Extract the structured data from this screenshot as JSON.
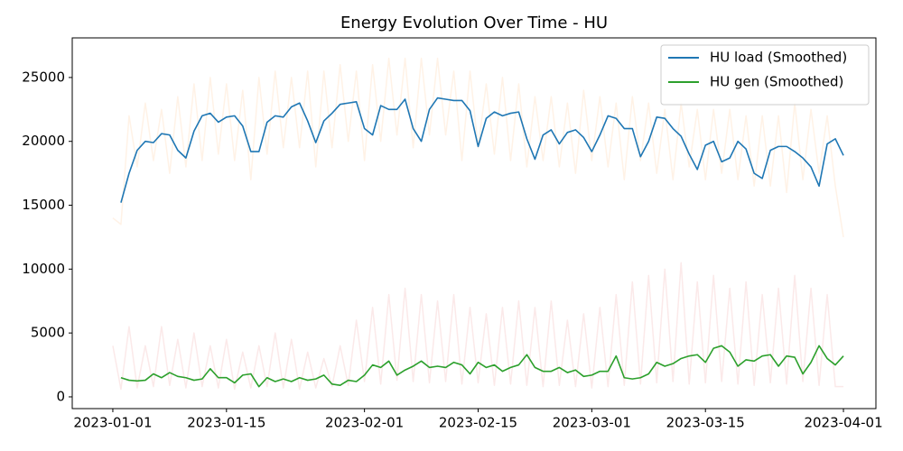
{
  "chart_data": {
    "type": "line",
    "title": "Energy Evolution Over Time - HU",
    "x": [
      "2023-01-01",
      "2023-01-02",
      "2023-01-03",
      "2023-01-04",
      "2023-01-05",
      "2023-01-06",
      "2023-01-07",
      "2023-01-08",
      "2023-01-09",
      "2023-01-10",
      "2023-01-11",
      "2023-01-12",
      "2023-01-13",
      "2023-01-14",
      "2023-01-15",
      "2023-01-16",
      "2023-01-17",
      "2023-01-18",
      "2023-01-19",
      "2023-01-20",
      "2023-01-21",
      "2023-01-22",
      "2023-01-23",
      "2023-01-24",
      "2023-01-25",
      "2023-01-26",
      "2023-01-27",
      "2023-01-28",
      "2023-01-29",
      "2023-01-30",
      "2023-01-31",
      "2023-02-01",
      "2023-02-02",
      "2023-02-03",
      "2023-02-04",
      "2023-02-05",
      "2023-02-06",
      "2023-02-07",
      "2023-02-08",
      "2023-02-09",
      "2023-02-10",
      "2023-02-11",
      "2023-02-12",
      "2023-02-13",
      "2023-02-14",
      "2023-02-15",
      "2023-02-16",
      "2023-02-17",
      "2023-02-18",
      "2023-02-19",
      "2023-02-20",
      "2023-02-21",
      "2023-02-22",
      "2023-02-23",
      "2023-02-24",
      "2023-02-25",
      "2023-02-26",
      "2023-02-27",
      "2023-02-28",
      "2023-03-01",
      "2023-03-02",
      "2023-03-03",
      "2023-03-04",
      "2023-03-05",
      "2023-03-06",
      "2023-03-07",
      "2023-03-08",
      "2023-03-09",
      "2023-03-10",
      "2023-03-11",
      "2023-03-12",
      "2023-03-13",
      "2023-03-14",
      "2023-03-15",
      "2023-03-16",
      "2023-03-17",
      "2023-03-18",
      "2023-03-19",
      "2023-03-20",
      "2023-03-21",
      "2023-03-22",
      "2023-03-23",
      "2023-03-24",
      "2023-03-25",
      "2023-03-26",
      "2023-03-27",
      "2023-03-28",
      "2023-03-29",
      "2023-03-30",
      "2023-03-31",
      "2023-04-01"
    ],
    "series": [
      {
        "color": "#ff7f0e",
        "opacity": 0.1,
        "values": [
          14000,
          13500,
          22000,
          18000,
          23000,
          18500,
          22500,
          17500,
          23500,
          18000,
          24500,
          18500,
          25000,
          19000,
          24500,
          18500,
          24000,
          17000,
          25000,
          19000,
          25500,
          19500,
          25000,
          19500,
          25500,
          18000,
          25500,
          19500,
          26000,
          20000,
          25500,
          18500,
          26000,
          20000,
          26500,
          20500,
          26500,
          19500,
          26500,
          20500,
          26500,
          20500,
          25500,
          18500,
          25500,
          19500,
          24500,
          19000,
          25000,
          18500,
          24500,
          18000,
          23500,
          18500,
          23500,
          18000,
          23000,
          17500,
          24000,
          18500,
          23500,
          18000,
          23000,
          17000,
          23500,
          18500,
          23000,
          17500,
          22500,
          17000,
          23000,
          18000,
          22500,
          17000,
          22500,
          17500,
          22500,
          17000,
          22000,
          16500,
          22000,
          16500,
          22000,
          16000,
          23000,
          17000,
          22500,
          17500,
          22000,
          16500,
          12500
        ]
      },
      {
        "color": "#d62728",
        "opacity": 0.1,
        "values": [
          4000,
          600,
          5500,
          700,
          4000,
          800,
          5500,
          900,
          4500,
          700,
          5000,
          800,
          4000,
          700,
          4500,
          600,
          3500,
          700,
          4000,
          800,
          5000,
          700,
          4500,
          600,
          3500,
          700,
          3000,
          800,
          4000,
          900,
          6000,
          1200,
          7000,
          1000,
          8000,
          1300,
          8500,
          1200,
          8000,
          1100,
          7500,
          1200,
          8000,
          1000,
          7000,
          1100,
          6500,
          900,
          7000,
          1000,
          7500,
          900,
          7000,
          800,
          7500,
          900,
          6000,
          800,
          6500,
          700,
          7000,
          800,
          8000,
          900,
          9000,
          1000,
          9500,
          1100,
          10000,
          1200,
          10500,
          1000,
          9000,
          1100,
          9500,
          1200,
          8500,
          1000,
          9000,
          900,
          8000,
          1100,
          8500,
          1000,
          9500,
          1200,
          8500,
          900,
          8000,
          800,
          800
        ]
      },
      {
        "name": "HU load (Smoothed)",
        "color": "#1f77b4",
        "values": [
          null,
          15200,
          17500,
          19300,
          20000,
          19900,
          20600,
          20500,
          19300,
          18700,
          20800,
          22000,
          22200,
          21500,
          21900,
          22000,
          21200,
          19200,
          19200,
          21500,
          22000,
          21900,
          22700,
          23000,
          21600,
          19900,
          21600,
          22200,
          22900,
          23000,
          23100,
          21000,
          20500,
          22800,
          22500,
          22500,
          23300,
          21000,
          20000,
          22500,
          23400,
          23300,
          23200,
          23200,
          22400,
          19600,
          21800,
          22300,
          22000,
          22200,
          22300,
          20200,
          18600,
          20500,
          20900,
          19800,
          20700,
          20900,
          20300,
          19200,
          20500,
          22000,
          21800,
          21000,
          21000,
          18800,
          20000,
          21900,
          21800,
          21000,
          20400,
          19000,
          17800,
          19700,
          20000,
          18400,
          18700,
          20000,
          19400,
          17500,
          17100,
          19300,
          19600,
          19600,
          19200,
          18700,
          18000,
          16500,
          19800,
          20200,
          18900
        ]
      },
      {
        "name": "HU gen (Smoothed)",
        "color": "#2ca02c",
        "values": [
          null,
          1500,
          1300,
          1250,
          1300,
          1800,
          1500,
          1900,
          1600,
          1500,
          1300,
          1400,
          2200,
          1500,
          1500,
          1100,
          1700,
          1800,
          800,
          1500,
          1200,
          1400,
          1200,
          1500,
          1300,
          1400,
          1700,
          1000,
          900,
          1300,
          1200,
          1700,
          2500,
          2300,
          2800,
          1700,
          2100,
          2400,
          2800,
          2300,
          2400,
          2300,
          2700,
          2500,
          1800,
          2700,
          2300,
          2500,
          2000,
          2300,
          2500,
          3300,
          2300,
          2000,
          2000,
          2300,
          1900,
          2100,
          1600,
          1700,
          2000,
          2000,
          3200,
          1500,
          1400,
          1500,
          1800,
          2700,
          2400,
          2600,
          3000,
          3200,
          3300,
          2700,
          3800,
          4000,
          3500,
          2400,
          2900,
          2800,
          3200,
          3300,
          2400,
          3200,
          3100,
          1800,
          2700,
          4000,
          3000,
          2500,
          3200
        ]
      }
    ],
    "xlim": [
      "2022-12-27",
      "2023-04-05"
    ],
    "xticks": [
      "2023-01-01",
      "2023-01-15",
      "2023-02-01",
      "2023-02-15",
      "2023-03-01",
      "2023-03-15",
      "2023-04-01"
    ],
    "ylim": [
      -920,
      28100
    ],
    "yticks": [
      0,
      5000,
      10000,
      15000,
      20000,
      25000
    ],
    "legend": "upper right"
  }
}
